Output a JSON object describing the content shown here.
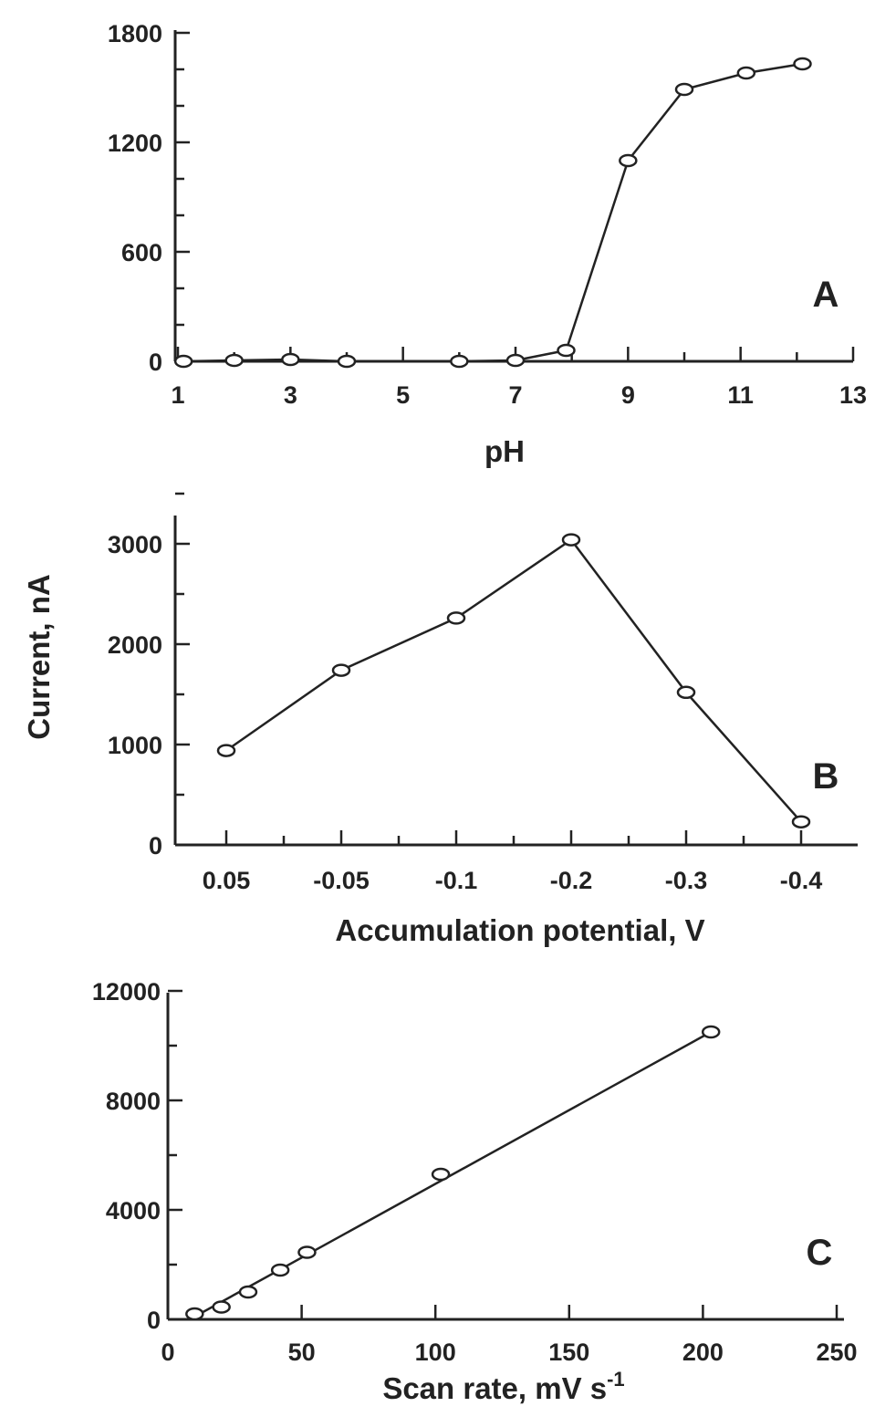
{
  "figure": {
    "shared_ylabel": "Current, nA"
  },
  "chart_data": [
    {
      "panel": "A",
      "type": "line",
      "xlabel": "pH",
      "ylabel": "",
      "xlim": [
        1,
        13
      ],
      "ylim": [
        0,
        1800
      ],
      "xticks": [
        1,
        3,
        5,
        7,
        9,
        11,
        13
      ],
      "xtick_labels": [
        "1",
        "3",
        "5",
        "7",
        "9",
        "11",
        "13"
      ],
      "xminor": [
        2,
        4,
        6,
        8,
        10,
        12
      ],
      "yticks": [
        0,
        600,
        1200,
        1800
      ],
      "ytick_labels": [
        "0",
        "600",
        "1200",
        "1800"
      ],
      "yminor": [
        200,
        400,
        800,
        1000,
        1400,
        1600
      ],
      "series": [
        {
          "x": [
            1.1,
            2,
            3,
            4,
            6,
            7,
            7.9,
            9,
            10,
            11.1,
            12.1
          ],
          "y": [
            0,
            5,
            10,
            0,
            0,
            5,
            60,
            1100,
            1490,
            1580,
            1630
          ]
        }
      ]
    },
    {
      "panel": "B",
      "type": "line",
      "xlabel": "Accumulation potential, V",
      "ylabel": "",
      "categories": [
        "0.05",
        "-0.05",
        "-0.1",
        "-0.2",
        "-0.3",
        "-0.4"
      ],
      "ylim": [
        0,
        3500
      ],
      "yticks": [
        0,
        1000,
        2000,
        3000
      ],
      "ytick_labels": [
        "0",
        "1000",
        "2000",
        "3000"
      ],
      "yminor": [
        500,
        1500,
        2500,
        3500
      ],
      "series": [
        {
          "x": [
            "0.05",
            "-0.05",
            "-0.1",
            "-0.2",
            "-0.3",
            "-0.4"
          ],
          "y": [
            940,
            1740,
            2260,
            3040,
            1520,
            230
          ]
        }
      ]
    },
    {
      "panel": "C",
      "type": "line",
      "xlabel": "Scan rate, mV s-1",
      "ylabel": "",
      "xlim": [
        0,
        250
      ],
      "ylim": [
        0,
        12000
      ],
      "xticks": [
        0,
        50,
        100,
        150,
        200,
        250
      ],
      "xtick_labels": [
        "0",
        "50",
        "100",
        "150",
        "200",
        "250"
      ],
      "yticks": [
        0,
        4000,
        8000,
        12000
      ],
      "ytick_labels": [
        "0",
        "4000",
        "8000",
        "12000"
      ],
      "yminor": [
        2000,
        6000,
        10000
      ],
      "series": [
        {
          "x": [
            10,
            20,
            30,
            42,
            52,
            102,
            203
          ],
          "y": [
            200,
            450,
            1000,
            1800,
            2450,
            5300,
            10500
          ]
        }
      ],
      "fit_line": {
        "x": [
          10,
          203
        ],
        "y": [
          100,
          10500
        ]
      }
    }
  ]
}
